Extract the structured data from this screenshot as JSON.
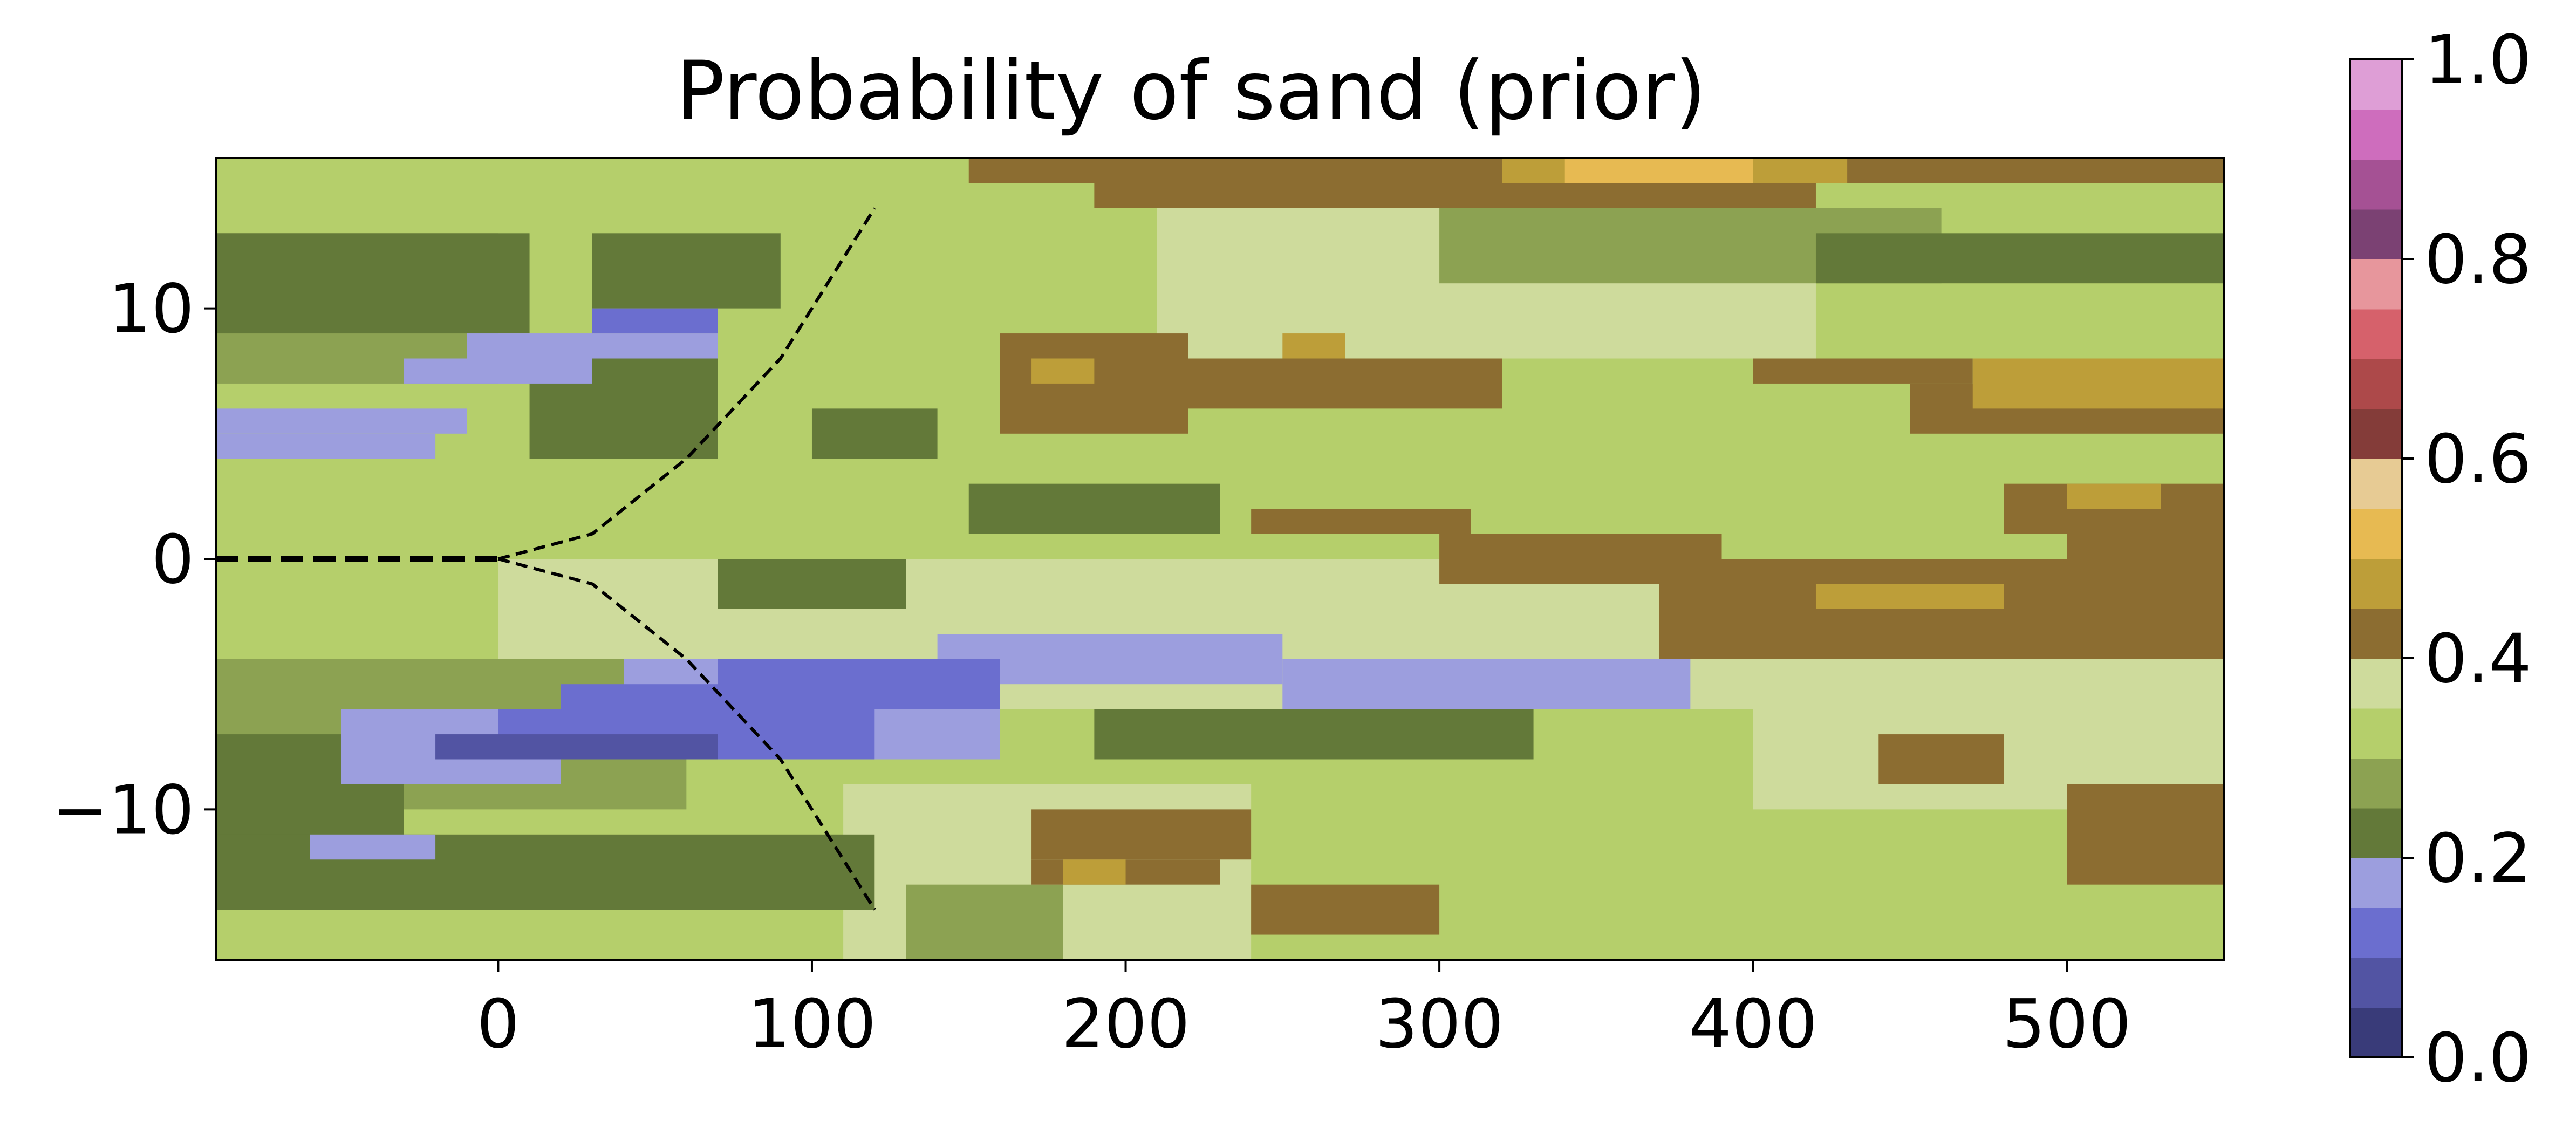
{
  "chart_data": {
    "type": "heatmap",
    "title": "Probability of sand (prior)",
    "xlabel": "",
    "ylabel": "",
    "xlim": [
      -90,
      550
    ],
    "ylim": [
      -16,
      16
    ],
    "xticks": [
      0,
      100,
      200,
      300,
      400,
      500
    ],
    "xtick_labels": [
      "0",
      "100",
      "200",
      "300",
      "400",
      "500"
    ],
    "yticks": [
      10,
      0,
      -10
    ],
    "ytick_labels": [
      "10",
      "0",
      "−10"
    ],
    "colorbar": {
      "range": [
        0,
        1
      ],
      "ticks": [
        0.0,
        0.2,
        0.4,
        0.6,
        0.8,
        1.0
      ],
      "tick_labels": [
        "0.0",
        "0.2",
        "0.4",
        "0.6",
        "0.8",
        "1.0"
      ],
      "colors": [
        "#393b79",
        "#5254a3",
        "#6b6ecf",
        "#9c9ede",
        "#637939",
        "#8ca252",
        "#b5cf6b",
        "#cedb9c",
        "#8c6d31",
        "#bd9e39",
        "#e7ba52",
        "#e7cb94",
        "#843c39",
        "#ad494a",
        "#d6616b",
        "#e7969c",
        "#7b4173",
        "#a55194",
        "#ce6dbd",
        "#de9ed6"
      ]
    },
    "background_class": 6,
    "field_regions": [
      {
        "x": [
          -90,
          550
        ],
        "y": [
          -16,
          16
        ],
        "class": 6
      },
      {
        "x": [
          0,
          550
        ],
        "y": [
          -6,
          0
        ],
        "class": 7
      },
      {
        "x": [
          210,
          420
        ],
        "y": [
          8,
          14
        ],
        "class": 7
      },
      {
        "x": [
          400,
          550
        ],
        "y": [
          -10,
          -4
        ],
        "class": 7
      },
      {
        "x": [
          110,
          240
        ],
        "y": [
          -16,
          -9
        ],
        "class": 7
      },
      {
        "x": [
          -90,
          0
        ],
        "y": [
          7,
          13
        ],
        "class": 5
      },
      {
        "x": [
          -90,
          60
        ],
        "y": [
          -10,
          -4
        ],
        "class": 5
      },
      {
        "x": [
          130,
          180
        ],
        "y": [
          -16,
          -13
        ],
        "class": 5
      },
      {
        "x": [
          300,
          460
        ],
        "y": [
          11,
          14
        ],
        "class": 5
      },
      {
        "x": [
          -90,
          10
        ],
        "y": [
          9,
          13
        ],
        "class": 4
      },
      {
        "x": [
          30,
          90
        ],
        "y": [
          10,
          13
        ],
        "class": 4
      },
      {
        "x": [
          -90,
          -30
        ],
        "y": [
          -13,
          -7
        ],
        "class": 4
      },
      {
        "x": [
          70,
          130
        ],
        "y": [
          -2,
          0
        ],
        "class": 4
      },
      {
        "x": [
          10,
          70
        ],
        "y": [
          4,
          8
        ],
        "class": 4
      },
      {
        "x": [
          100,
          140
        ],
        "y": [
          4,
          6
        ],
        "class": 4
      },
      {
        "x": [
          150,
          230
        ],
        "y": [
          1,
          3
        ],
        "class": 4
      },
      {
        "x": [
          190,
          330
        ],
        "y": [
          -8,
          -6
        ],
        "class": 4
      },
      {
        "x": [
          420,
          550
        ],
        "y": [
          11,
          13
        ],
        "class": 4
      },
      {
        "x": [
          -90,
          120
        ],
        "y": [
          -14,
          -11
        ],
        "class": 4
      },
      {
        "x": [
          -90,
          -10
        ],
        "y": [
          5,
          6
        ],
        "class": 3
      },
      {
        "x": [
          -90,
          -20
        ],
        "y": [
          4,
          5
        ],
        "class": 3
      },
      {
        "x": [
          -30,
          30
        ],
        "y": [
          7,
          8
        ],
        "class": 3
      },
      {
        "x": [
          -10,
          70
        ],
        "y": [
          8,
          9
        ],
        "class": 3
      },
      {
        "x": [
          -50,
          160
        ],
        "y": [
          -8,
          -6
        ],
        "class": 3
      },
      {
        "x": [
          40,
          160
        ],
        "y": [
          -6,
          -4
        ],
        "class": 3
      },
      {
        "x": [
          140,
          250
        ],
        "y": [
          -5,
          -3
        ],
        "class": 3
      },
      {
        "x": [
          250,
          380
        ],
        "y": [
          -6,
          -4
        ],
        "class": 3
      },
      {
        "x": [
          -50,
          20
        ],
        "y": [
          -9,
          -8
        ],
        "class": 3
      },
      {
        "x": [
          -60,
          -20
        ],
        "y": [
          -12,
          -11
        ],
        "class": 3
      },
      {
        "x": [
          20,
          70
        ],
        "y": [
          -6,
          -5
        ],
        "class": 2
      },
      {
        "x": [
          30,
          70
        ],
        "y": [
          9,
          10
        ],
        "class": 2
      },
      {
        "x": [
          0,
          120
        ],
        "y": [
          -8,
          -6
        ],
        "class": 2
      },
      {
        "x": [
          70,
          160
        ],
        "y": [
          -6,
          -4
        ],
        "class": 2
      },
      {
        "x": [
          -20,
          70
        ],
        "y": [
          -8,
          -7
        ],
        "class": 1
      },
      {
        "x": [
          160,
          220
        ],
        "y": [
          5,
          9
        ],
        "class": 8
      },
      {
        "x": [
          220,
          320
        ],
        "y": [
          6,
          8
        ],
        "class": 8
      },
      {
        "x": [
          240,
          310
        ],
        "y": [
          1,
          2
        ],
        "class": 8
      },
      {
        "x": [
          300,
          390
        ],
        "y": [
          -1,
          1
        ],
        "class": 8
      },
      {
        "x": [
          370,
          550
        ],
        "y": [
          -4,
          0
        ],
        "class": 8
      },
      {
        "x": [
          480,
          550
        ],
        "y": [
          1,
          3
        ],
        "class": 8
      },
      {
        "x": [
          500,
          550
        ],
        "y": [
          -1,
          1
        ],
        "class": 8
      },
      {
        "x": [
          400,
          470
        ],
        "y": [
          7,
          8
        ],
        "class": 8
      },
      {
        "x": [
          450,
          550
        ],
        "y": [
          5,
          7
        ],
        "class": 8
      },
      {
        "x": [
          170,
          240
        ],
        "y": [
          -12,
          -10
        ],
        "class": 8
      },
      {
        "x": [
          170,
          230
        ],
        "y": [
          -13,
          -12
        ],
        "class": 8
      },
      {
        "x": [
          240,
          300
        ],
        "y": [
          -15,
          -13
        ],
        "class": 8
      },
      {
        "x": [
          440,
          480
        ],
        "y": [
          -9,
          -7
        ],
        "class": 8
      },
      {
        "x": [
          500,
          550
        ],
        "y": [
          -13,
          -9
        ],
        "class": 8
      },
      {
        "x": [
          150,
          550
        ],
        "y": [
          15,
          16
        ],
        "class": 8
      },
      {
        "x": [
          190,
          420
        ],
        "y": [
          14,
          15
        ],
        "class": 8
      },
      {
        "x": [
          320,
          430
        ],
        "y": [
          15,
          16
        ],
        "class": 9
      },
      {
        "x": [
          470,
          550
        ],
        "y": [
          6,
          8
        ],
        "class": 9
      },
      {
        "x": [
          420,
          480
        ],
        "y": [
          -2,
          -1
        ],
        "class": 9
      },
      {
        "x": [
          180,
          200
        ],
        "y": [
          -13,
          -12
        ],
        "class": 9
      },
      {
        "x": [
          170,
          190
        ],
        "y": [
          7,
          8
        ],
        "class": 9
      },
      {
        "x": [
          250,
          270
        ],
        "y": [
          8,
          9
        ],
        "class": 9
      },
      {
        "x": [
          500,
          530
        ],
        "y": [
          2,
          3
        ],
        "class": 9
      },
      {
        "x": [
          340,
          400
        ],
        "y": [
          15,
          16
        ],
        "class": 10
      }
    ],
    "dashed_lines": [
      {
        "x": [
          -90,
          0
        ],
        "y": [
          0,
          0
        ],
        "style": "thick"
      },
      {
        "x": [
          0,
          30,
          60,
          90,
          120
        ],
        "y": [
          0,
          1,
          4,
          8,
          14
        ],
        "style": "thin"
      },
      {
        "x": [
          0,
          30,
          60,
          90,
          120
        ],
        "y": [
          0,
          -1,
          -4,
          -8,
          -14
        ],
        "style": "thin"
      }
    ]
  }
}
